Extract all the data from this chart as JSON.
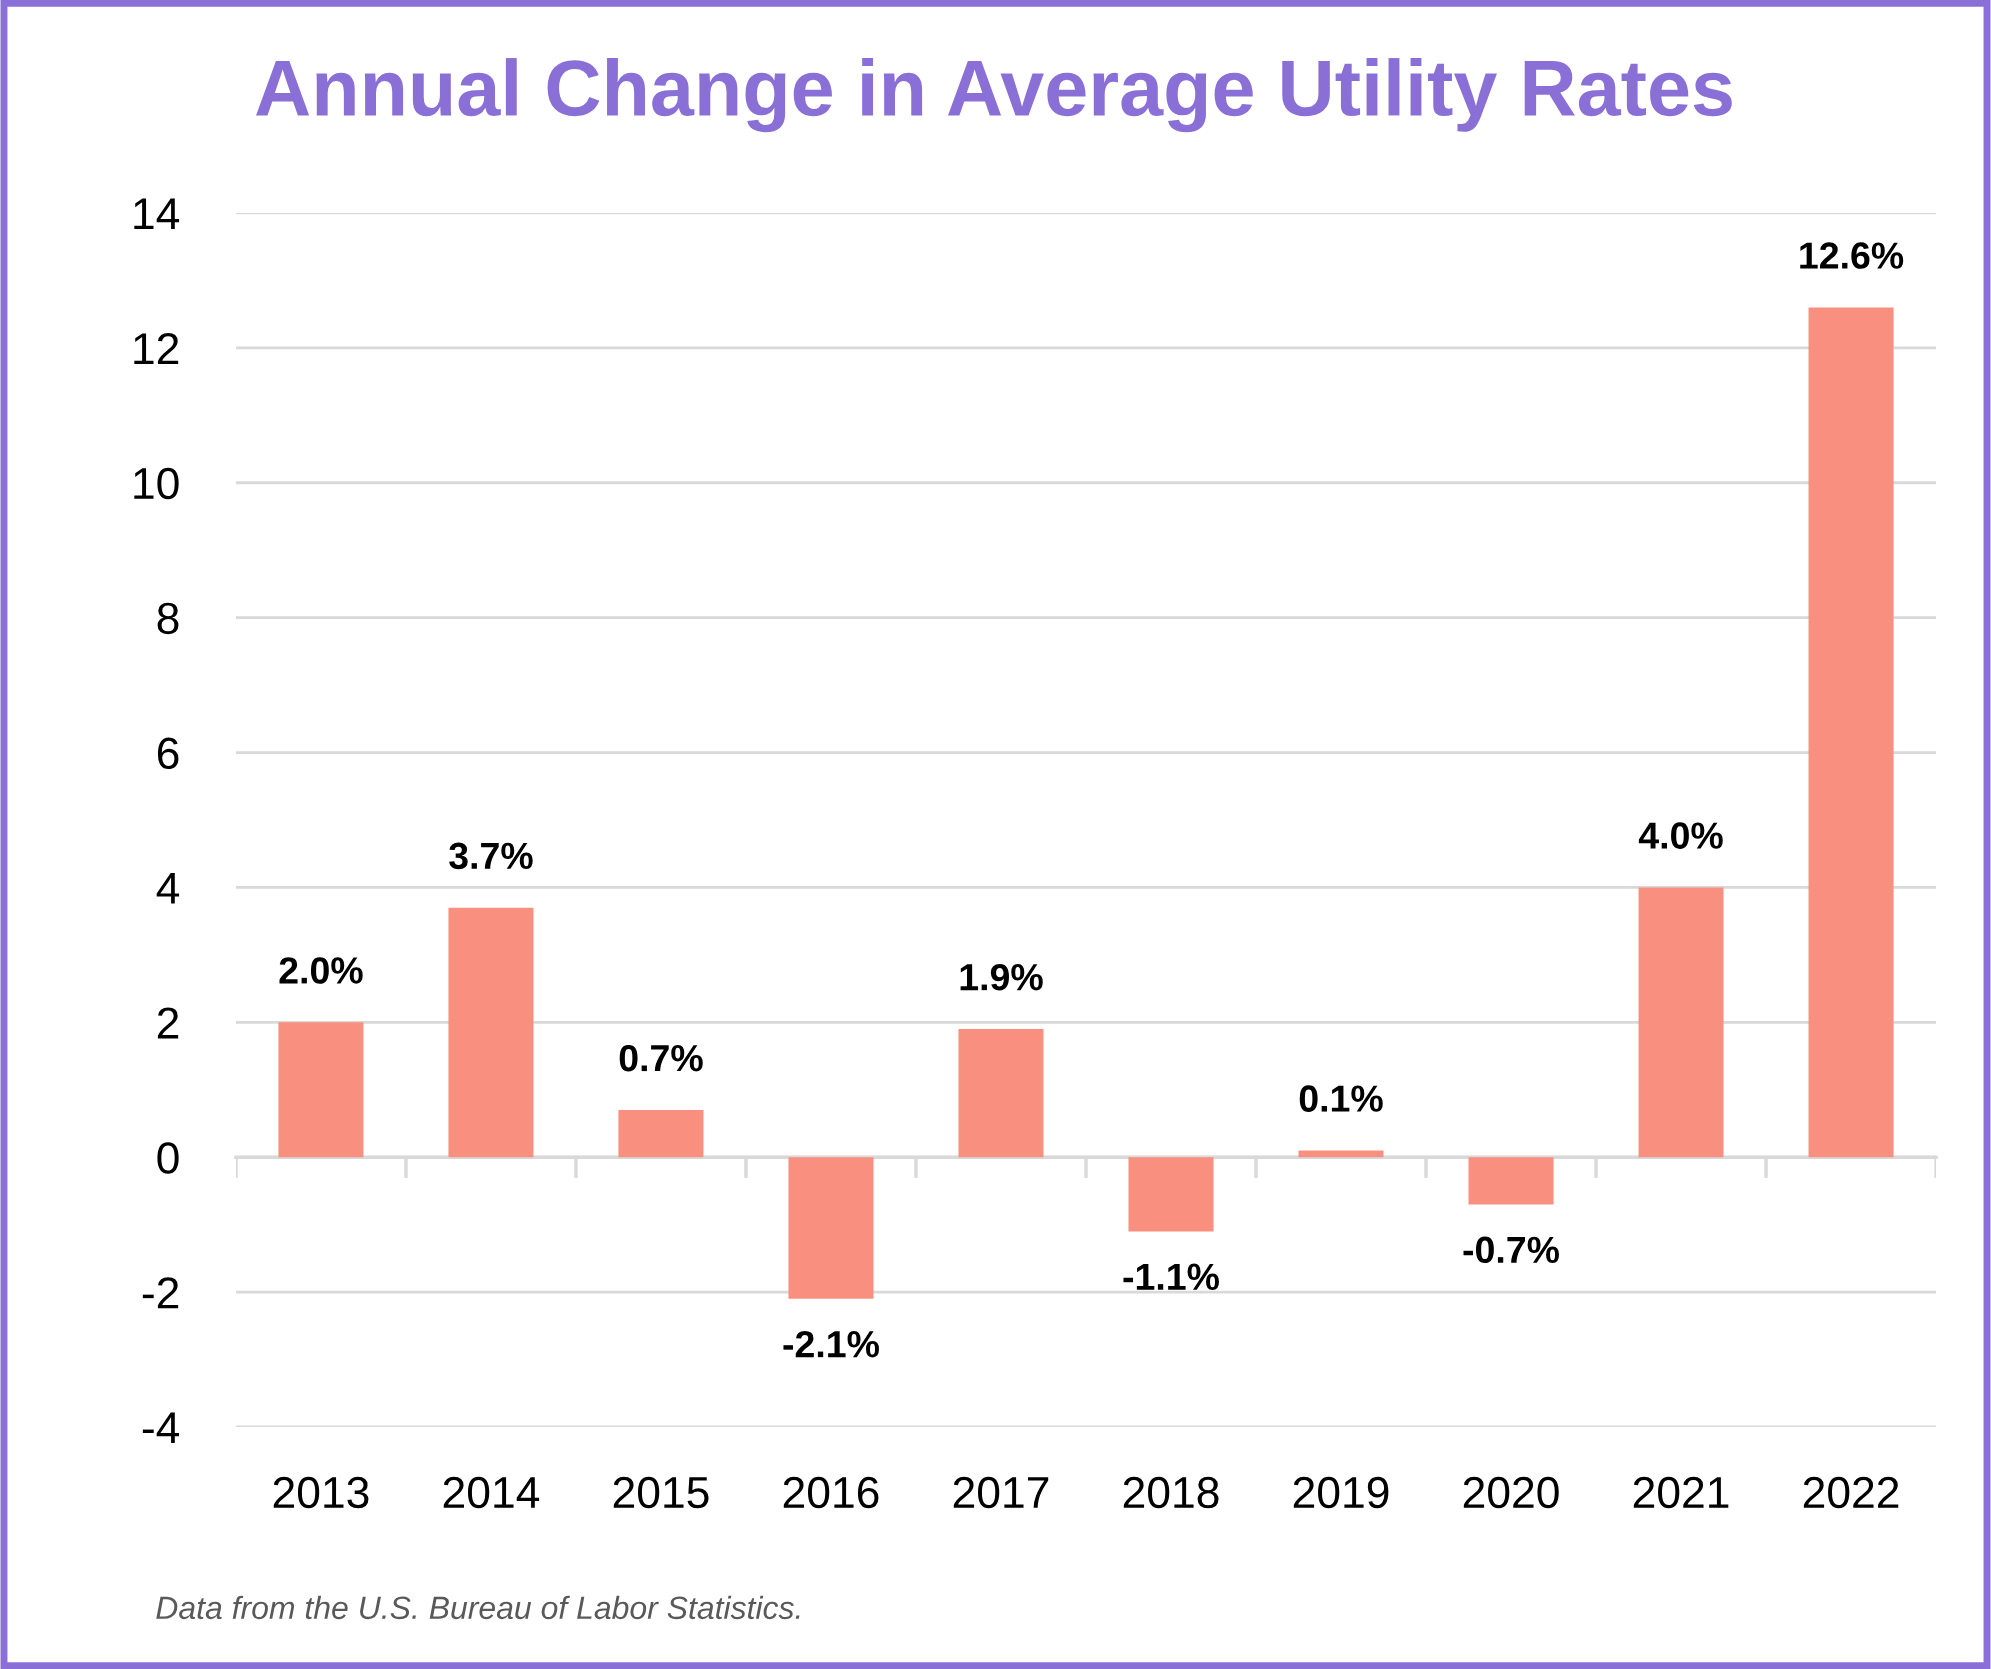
{
  "chart_data": {
    "type": "bar",
    "title": "Annual Change in Average Utility Rates",
    "categories": [
      "2013",
      "2014",
      "2015",
      "2016",
      "2017",
      "2018",
      "2019",
      "2020",
      "2021",
      "2022"
    ],
    "values": [
      2.0,
      3.7,
      0.7,
      -2.1,
      1.9,
      -1.1,
      0.1,
      -0.7,
      4.0,
      12.6
    ],
    "color": "#f98f7f",
    "value_labels": [
      "2.0%",
      "3.7%",
      "0.7%",
      "-2.1%",
      "1.9%",
      "-1.1%",
      "0.1%",
      "-0.7%",
      "4.0%",
      "12.6%"
    ],
    "ylim": [
      -4,
      14
    ],
    "yticks": [
      -4,
      -2,
      0,
      2,
      4,
      6,
      8,
      10,
      12,
      14
    ],
    "grid": "y",
    "annotations": [
      "Data from the U.S. Bureau of Labor Statistics."
    ]
  }
}
